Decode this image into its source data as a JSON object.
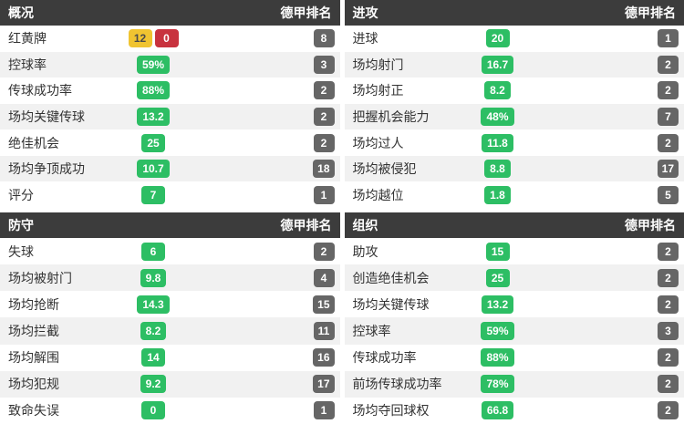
{
  "colors": {
    "header_bg": "#3c3c3c",
    "green": "#2dbe64",
    "yellow": "#f0c431",
    "red": "#c8323e",
    "rank_bg": "#666666",
    "row_alt_bg": "#f1f1f1"
  },
  "panels": [
    {
      "title": "概况",
      "rank_header": "德甲排名",
      "rows": [
        {
          "label": "红黄牌",
          "badges": [
            {
              "text": "12",
              "color": "yellow"
            },
            {
              "text": "0",
              "color": "red"
            }
          ],
          "rank": "8"
        },
        {
          "label": "控球率",
          "badges": [
            {
              "text": "59%",
              "color": "green"
            }
          ],
          "rank": "3"
        },
        {
          "label": "传球成功率",
          "badges": [
            {
              "text": "88%",
              "color": "green"
            }
          ],
          "rank": "2"
        },
        {
          "label": "场均关键传球",
          "badges": [
            {
              "text": "13.2",
              "color": "green"
            }
          ],
          "rank": "2"
        },
        {
          "label": "绝佳机会",
          "badges": [
            {
              "text": "25",
              "color": "green"
            }
          ],
          "rank": "2"
        },
        {
          "label": "场均争顶成功",
          "badges": [
            {
              "text": "10.7",
              "color": "green"
            }
          ],
          "rank": "18"
        },
        {
          "label": "评分",
          "badges": [
            {
              "text": "7",
              "color": "green"
            }
          ],
          "rank": "1"
        }
      ]
    },
    {
      "title": "进攻",
      "rank_header": "德甲排名",
      "rows": [
        {
          "label": "进球",
          "badges": [
            {
              "text": "20",
              "color": "green"
            }
          ],
          "rank": "1"
        },
        {
          "label": "场均射门",
          "badges": [
            {
              "text": "16.7",
              "color": "green"
            }
          ],
          "rank": "2"
        },
        {
          "label": "场均射正",
          "badges": [
            {
              "text": "8.2",
              "color": "green"
            }
          ],
          "rank": "2"
        },
        {
          "label": "把握机会能力",
          "badges": [
            {
              "text": "48%",
              "color": "green"
            }
          ],
          "rank": "7"
        },
        {
          "label": "场均过人",
          "badges": [
            {
              "text": "11.8",
              "color": "green"
            }
          ],
          "rank": "2"
        },
        {
          "label": "场均被侵犯",
          "badges": [
            {
              "text": "8.8",
              "color": "green"
            }
          ],
          "rank": "17"
        },
        {
          "label": "场均越位",
          "badges": [
            {
              "text": "1.8",
              "color": "green"
            }
          ],
          "rank": "5"
        }
      ]
    },
    {
      "title": "防守",
      "rank_header": "德甲排名",
      "rows": [
        {
          "label": "失球",
          "badges": [
            {
              "text": "6",
              "color": "green"
            }
          ],
          "rank": "2"
        },
        {
          "label": "场均被射门",
          "badges": [
            {
              "text": "9.8",
              "color": "green"
            }
          ],
          "rank": "4"
        },
        {
          "label": "场均抢断",
          "badges": [
            {
              "text": "14.3",
              "color": "green"
            }
          ],
          "rank": "15"
        },
        {
          "label": "场均拦截",
          "badges": [
            {
              "text": "8.2",
              "color": "green"
            }
          ],
          "rank": "11"
        },
        {
          "label": "场均解围",
          "badges": [
            {
              "text": "14",
              "color": "green"
            }
          ],
          "rank": "16"
        },
        {
          "label": "场均犯规",
          "badges": [
            {
              "text": "9.2",
              "color": "green"
            }
          ],
          "rank": "17"
        },
        {
          "label": "致命失误",
          "badges": [
            {
              "text": "0",
              "color": "green"
            }
          ],
          "rank": "1"
        }
      ]
    },
    {
      "title": "组织",
      "rank_header": "德甲排名",
      "rows": [
        {
          "label": "助攻",
          "badges": [
            {
              "text": "15",
              "color": "green"
            }
          ],
          "rank": "2"
        },
        {
          "label": "创造绝佳机会",
          "badges": [
            {
              "text": "25",
              "color": "green"
            }
          ],
          "rank": "2"
        },
        {
          "label": "场均关键传球",
          "badges": [
            {
              "text": "13.2",
              "color": "green"
            }
          ],
          "rank": "2"
        },
        {
          "label": "控球率",
          "badges": [
            {
              "text": "59%",
              "color": "green"
            }
          ],
          "rank": "3"
        },
        {
          "label": "传球成功率",
          "badges": [
            {
              "text": "88%",
              "color": "green"
            }
          ],
          "rank": "2"
        },
        {
          "label": "前场传球成功率",
          "badges": [
            {
              "text": "78%",
              "color": "green"
            }
          ],
          "rank": "2"
        },
        {
          "label": "场均夺回球权",
          "badges": [
            {
              "text": "66.8",
              "color": "green"
            }
          ],
          "rank": "2"
        }
      ]
    }
  ]
}
